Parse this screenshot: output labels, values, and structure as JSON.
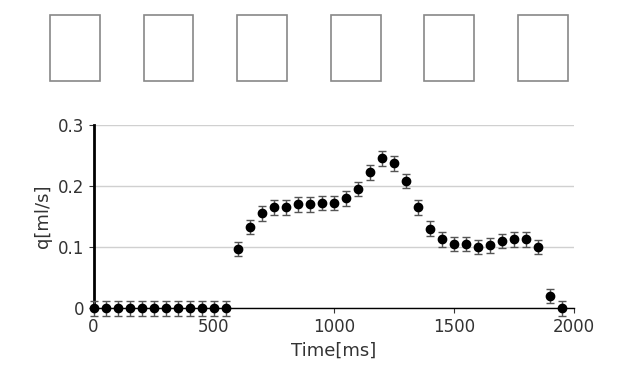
{
  "chart_data": {
    "type": "scatter",
    "x_label": "Time[ms]",
    "y_label": "q[ml/s]",
    "x": [
      0,
      50,
      100,
      150,
      200,
      250,
      300,
      350,
      400,
      450,
      500,
      550,
      600,
      650,
      700,
      750,
      800,
      850,
      900,
      950,
      1000,
      1050,
      1100,
      1150,
      1200,
      1250,
      1300,
      1350,
      1400,
      1450,
      1500,
      1550,
      1600,
      1650,
      1700,
      1750,
      1800,
      1850,
      1900,
      1950
    ],
    "values": [
      0,
      0,
      0,
      0,
      0,
      0,
      0,
      0,
      0,
      0,
      0,
      0,
      0.097,
      0.133,
      0.155,
      0.165,
      0.165,
      0.17,
      0.17,
      0.172,
      0.172,
      0.18,
      0.195,
      0.222,
      0.245,
      0.237,
      0.208,
      0.165,
      0.13,
      0.113,
      0.105,
      0.105,
      0.1,
      0.103,
      0.11,
      0.113,
      0.113,
      0.1,
      0.02,
      0
    ],
    "errors": [
      0.012,
      0.012,
      0.012,
      0.012,
      0.012,
      0.012,
      0.012,
      0.012,
      0.012,
      0.012,
      0.012,
      0.012,
      0.012,
      0.012,
      0.012,
      0.012,
      0.012,
      0.012,
      0.012,
      0.012,
      0.012,
      0.012,
      0.012,
      0.012,
      0.012,
      0.012,
      0.012,
      0.012,
      0.012,
      0.012,
      0.012,
      0.012,
      0.012,
      0.012,
      0.012,
      0.012,
      0.012,
      0.012,
      0.012,
      0.012
    ],
    "color": "#000000",
    "marker": "circle",
    "xlim": [
      0,
      2000
    ],
    "xticks": [
      0,
      500,
      1000,
      1500,
      2000
    ],
    "ylim": [
      0,
      0.3
    ],
    "yticks": [
      0,
      0.1,
      0.2,
      0.3
    ],
    "grid": true
  }
}
